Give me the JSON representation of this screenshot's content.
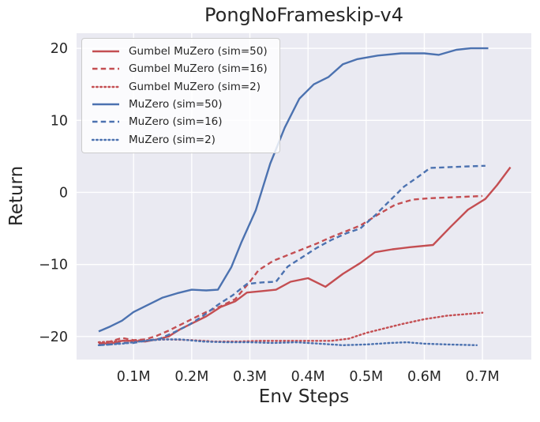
{
  "chart_data": {
    "type": "line",
    "title": "PongNoFrameskip-v4",
    "xlabel": "Env Steps",
    "ylabel": "Return",
    "x_unit": "millions of env steps",
    "xlim": [
      0.002,
      0.784
    ],
    "ylim": [
      -23.2,
      22.1
    ],
    "grid": true,
    "legend_position": "upper left",
    "colors": {
      "red": "#c44e52",
      "blue": "#4c72b0",
      "plot_bg": "#eaeaf2",
      "grid": "#ffffff",
      "text": "#262626"
    },
    "x_ticks": {
      "values": [
        0.1,
        0.2,
        0.3,
        0.4,
        0.5,
        0.6,
        0.7
      ],
      "labels": [
        "0.1M",
        "0.2M",
        "0.3M",
        "0.4M",
        "0.5M",
        "0.6M",
        "0.7M"
      ]
    },
    "y_ticks": {
      "values": [
        20,
        10,
        0,
        -10,
        -20
      ],
      "labels": [
        "20",
        "10",
        "0",
        "−10",
        "−20"
      ]
    },
    "series": [
      {
        "id": "gumbel-muzero-sim50",
        "name": "Gumbel MuZero (sim=50)",
        "color": "red",
        "style": "solid",
        "x": [
          0.04,
          0.06,
          0.08,
          0.1,
          0.12,
          0.14,
          0.16,
          0.18,
          0.2,
          0.225,
          0.25,
          0.275,
          0.295,
          0.32,
          0.345,
          0.37,
          0.4,
          0.43,
          0.46,
          0.49,
          0.515,
          0.545,
          0.575,
          0.615,
          0.645,
          0.675,
          0.705,
          0.725,
          0.748
        ],
        "y": [
          -20.9,
          -21.0,
          -20.6,
          -20.6,
          -20.7,
          -20.4,
          -20.0,
          -19.0,
          -18.2,
          -17.2,
          -15.9,
          -15.1,
          -13.9,
          -13.7,
          -13.5,
          -12.4,
          -11.9,
          -13.1,
          -11.3,
          -9.8,
          -8.3,
          -7.9,
          -7.6,
          -7.3,
          -4.8,
          -2.4,
          -0.9,
          1.0,
          3.5
        ]
      },
      {
        "id": "gumbel-muzero-sim16",
        "name": "Gumbel MuZero (sim=16)",
        "color": "red",
        "style": "dashed",
        "x": [
          0.04,
          0.06,
          0.08,
          0.1,
          0.12,
          0.14,
          0.16,
          0.18,
          0.2,
          0.225,
          0.25,
          0.275,
          0.3,
          0.315,
          0.34,
          0.365,
          0.39,
          0.415,
          0.44,
          0.465,
          0.49,
          0.52,
          0.55,
          0.58,
          0.61,
          0.64,
          0.67,
          0.7
        ],
        "y": [
          -21.0,
          -20.7,
          -20.2,
          -20.5,
          -20.4,
          -19.9,
          -19.2,
          -18.4,
          -17.6,
          -16.6,
          -15.8,
          -14.8,
          -12.4,
          -10.8,
          -9.5,
          -8.7,
          -7.9,
          -7.1,
          -6.2,
          -5.4,
          -4.6,
          -3.1,
          -1.7,
          -1.0,
          -0.8,
          -0.7,
          -0.6,
          -0.5
        ]
      },
      {
        "id": "gumbel-muzero-sim2",
        "name": "Gumbel MuZero (sim=2)",
        "color": "red",
        "style": "dotted",
        "x": [
          0.04,
          0.08,
          0.12,
          0.16,
          0.2,
          0.24,
          0.28,
          0.32,
          0.36,
          0.4,
          0.44,
          0.47,
          0.5,
          0.53,
          0.56,
          0.6,
          0.64,
          0.67,
          0.7
        ],
        "y": [
          -20.8,
          -20.6,
          -20.5,
          -20.4,
          -20.5,
          -20.7,
          -20.7,
          -20.6,
          -20.6,
          -20.6,
          -20.6,
          -20.3,
          -19.5,
          -18.9,
          -18.3,
          -17.6,
          -17.1,
          -16.9,
          -16.7
        ]
      },
      {
        "id": "muzero-sim50",
        "name": "MuZero (sim=50)",
        "color": "blue",
        "style": "solid",
        "x": [
          0.04,
          0.06,
          0.08,
          0.1,
          0.125,
          0.15,
          0.175,
          0.2,
          0.225,
          0.245,
          0.268,
          0.285,
          0.31,
          0.335,
          0.36,
          0.385,
          0.41,
          0.435,
          0.46,
          0.485,
          0.52,
          0.56,
          0.6,
          0.625,
          0.655,
          0.68,
          0.71
        ],
        "y": [
          -19.3,
          -18.6,
          -17.8,
          -16.6,
          -15.6,
          -14.6,
          -14.0,
          -13.5,
          -13.6,
          -13.5,
          -10.4,
          -7.0,
          -2.5,
          4.0,
          9.0,
          13.0,
          15.0,
          16.0,
          17.8,
          18.5,
          19.0,
          19.3,
          19.3,
          19.1,
          19.8,
          20.0,
          20.0
        ]
      },
      {
        "id": "muzero-sim16",
        "name": "MuZero (sim=16)",
        "color": "blue",
        "style": "dashed",
        "x": [
          0.04,
          0.06,
          0.08,
          0.1,
          0.12,
          0.145,
          0.17,
          0.195,
          0.22,
          0.245,
          0.27,
          0.295,
          0.32,
          0.345,
          0.365,
          0.39,
          0.415,
          0.44,
          0.465,
          0.49,
          0.515,
          0.54,
          0.565,
          0.59,
          0.61,
          0.64,
          0.67,
          0.705
        ],
        "y": [
          -21.2,
          -21.1,
          -20.9,
          -20.9,
          -20.6,
          -20.3,
          -19.4,
          -18.4,
          -17.1,
          -15.6,
          -14.3,
          -12.7,
          -12.5,
          -12.4,
          -10.3,
          -9.0,
          -7.7,
          -6.6,
          -5.7,
          -5.0,
          -3.2,
          -1.2,
          0.8,
          2.2,
          3.4,
          3.5,
          3.6,
          3.7
        ]
      },
      {
        "id": "muzero-sim2",
        "name": "MuZero (sim=2)",
        "color": "blue",
        "style": "dotted",
        "x": [
          0.04,
          0.08,
          0.12,
          0.15,
          0.18,
          0.22,
          0.26,
          0.3,
          0.34,
          0.38,
          0.42,
          0.46,
          0.5,
          0.54,
          0.57,
          0.6,
          0.64,
          0.69
        ],
        "y": [
          -21.2,
          -21.0,
          -20.6,
          -20.4,
          -20.4,
          -20.7,
          -20.8,
          -20.8,
          -20.9,
          -20.8,
          -21.0,
          -21.2,
          -21.1,
          -20.9,
          -20.8,
          -21.0,
          -21.1,
          -21.2
        ]
      }
    ]
  }
}
